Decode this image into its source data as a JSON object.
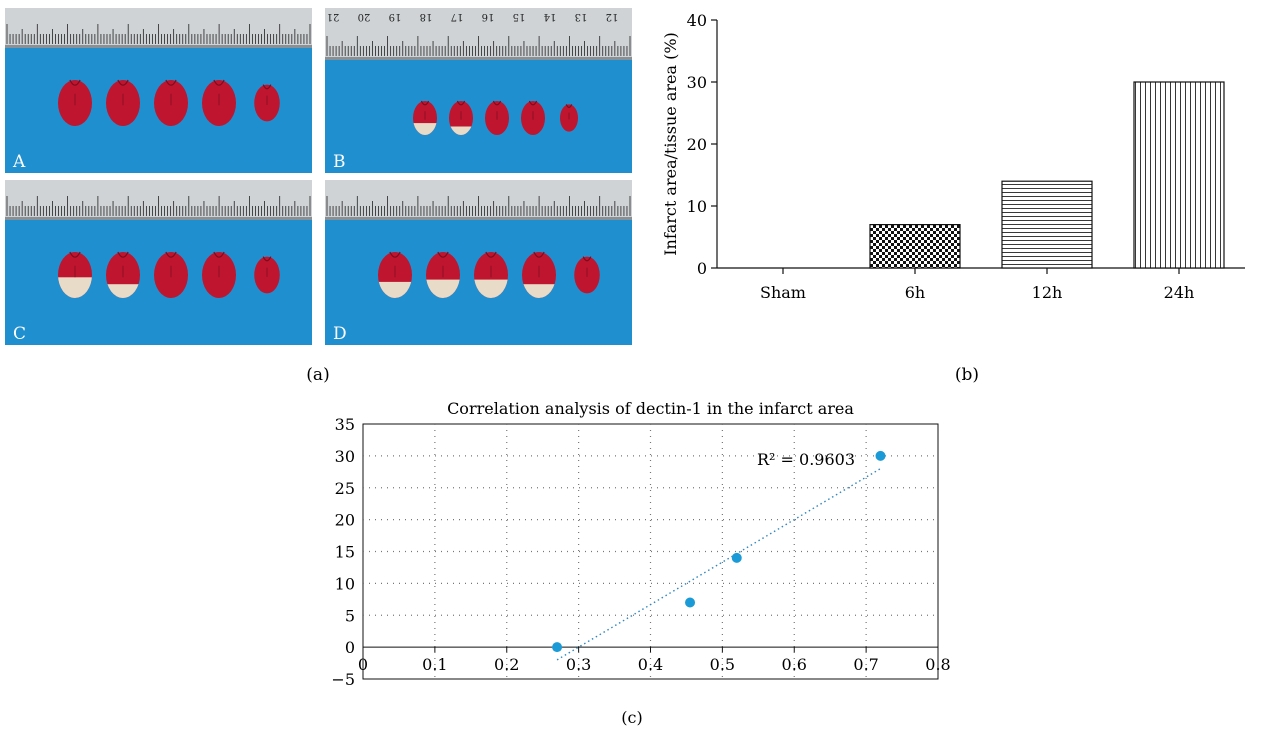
{
  "figure": {
    "panel_a": {
      "caption": "(a)",
      "photos": [
        {
          "label": "A",
          "slices": [
            {
              "pale": 0
            },
            {
              "pale": 0
            },
            {
              "pale": 0
            },
            {
              "pale": 0
            },
            {
              "pale": 0
            }
          ]
        },
        {
          "label": "B",
          "slices": [
            {
              "pale": 0.35
            },
            {
              "pale": 0.25
            },
            {
              "pale": 0
            },
            {
              "pale": 0
            },
            {
              "pale": 0
            }
          ]
        },
        {
          "label": "C",
          "slices": [
            {
              "pale": 0.45
            },
            {
              "pale": 0.3
            },
            {
              "pale": 0
            },
            {
              "pale": 0
            },
            {
              "pale": 0
            }
          ]
        },
        {
          "label": "D",
          "slices": [
            {
              "pale": 0.35
            },
            {
              "pale": 0.4
            },
            {
              "pale": 0.4
            },
            {
              "pale": 0.3
            },
            {
              "pale": 0
            }
          ]
        }
      ],
      "ruler_numbers_b": [
        "21",
        "20",
        "19",
        "18",
        "17",
        "16",
        "15",
        "14",
        "13",
        "12"
      ],
      "colors": {
        "background": "#1f8fcf",
        "tissue": "#c0152e",
        "pale_tissue": "#e8dcc8"
      }
    },
    "panel_b": {
      "caption": "(b)"
    },
    "panel_c": {
      "caption": "(c)",
      "annotation": "R² = 0.9603"
    }
  },
  "chart_data": [
    {
      "type": "bar",
      "categories": [
        "Sham",
        "6h",
        "12h",
        "24h"
      ],
      "values": [
        0,
        7,
        14,
        30
      ],
      "ylabel": "Infarct area/tissue area (%)",
      "xlabel": "",
      "ylim": [
        0,
        40
      ],
      "yticks": [
        0,
        10,
        20,
        30,
        40
      ],
      "patterns": [
        "none",
        "checker",
        "horizontal-lines",
        "vertical-lines"
      ],
      "grid": false
    },
    {
      "type": "scatter",
      "title": "Correlation analysis of dectin-1 in the infarct area",
      "points": [
        {
          "x": 0.27,
          "y": 0
        },
        {
          "x": 0.455,
          "y": 7
        },
        {
          "x": 0.52,
          "y": 14
        },
        {
          "x": 0.72,
          "y": 30
        }
      ],
      "trendline": {
        "x": [
          0.27,
          0.72
        ],
        "y": [
          -2,
          28
        ]
      },
      "r_squared_label": "R² = 0.9603",
      "xlim": [
        0,
        0.8
      ],
      "ylim": [
        -5,
        35
      ],
      "xticks": [
        "0",
        "0.1",
        "0.2",
        "0.3",
        "0.4",
        "0.5",
        "0.6",
        "0.7",
        "0.8"
      ],
      "yticks": [
        "−5",
        "0",
        "5",
        "10",
        "15",
        "20",
        "25",
        "30",
        "35"
      ],
      "grid": true,
      "colors": {
        "point": "#1a9ad6",
        "trendline": "#2e86c1",
        "grid": "#777777"
      }
    }
  ]
}
